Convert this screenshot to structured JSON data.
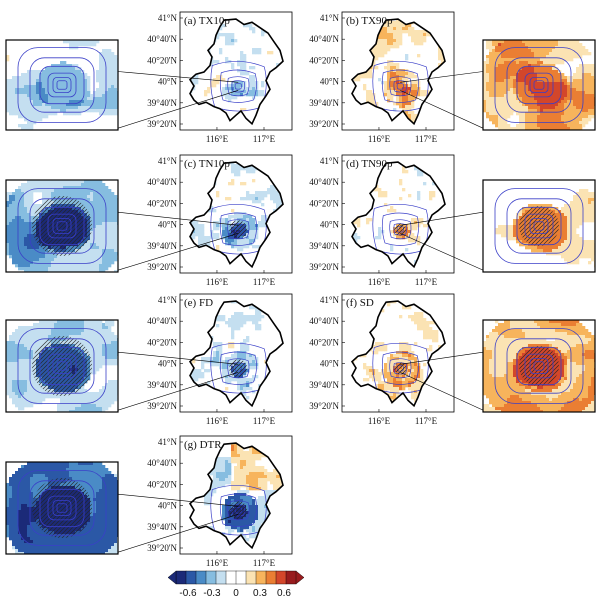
{
  "panels": [
    {
      "id": "a",
      "title": "(a) TX10p",
      "pattern": "cool",
      "core": -0.25,
      "halo": -0.1,
      "hatch": "none"
    },
    {
      "id": "b",
      "title": "(b) TX90p",
      "pattern": "warm",
      "core": 0.35,
      "halo": 0.2,
      "hatch": "none"
    },
    {
      "id": "c",
      "title": "(c) TN10p",
      "pattern": "cool",
      "core": -0.55,
      "halo": -0.25,
      "hatch": "wide"
    },
    {
      "id": "d",
      "title": "(d) TN90p",
      "pattern": "mixed",
      "core": 0.3,
      "halo": 0.05,
      "hatch": "core"
    },
    {
      "id": "e",
      "title": "(e) FD",
      "pattern": "cool",
      "core": -0.45,
      "halo": -0.15,
      "hatch": "wide"
    },
    {
      "id": "f",
      "title": "(f) SD",
      "pattern": "warm",
      "core": 0.45,
      "halo": 0.25,
      "hatch": "core"
    },
    {
      "id": "g",
      "title": "(g) DTR",
      "pattern": "dtr",
      "core": -0.65,
      "halo": -0.4,
      "hatch": "wide"
    }
  ],
  "lat_labels": [
    "41°N",
    "40°40'N",
    "40°20'N",
    "40°N",
    "39°40'N",
    "39°20'N"
  ],
  "lon_labels": [
    "116°E",
    "117°E"
  ],
  "colorbar": {
    "colors": [
      "#1b2a78",
      "#2b58a6",
      "#4a8bc6",
      "#86bde0",
      "#c4dff0",
      "#ffffff",
      "#ffffff",
      "#fbe3b3",
      "#f7b45c",
      "#ea7e33",
      "#d3462a",
      "#981b1d"
    ],
    "tick_labels": [
      "-0.6",
      "-0.3",
      "0",
      "0.3",
      "0.6"
    ],
    "tick_values": [
      -0.6,
      -0.3,
      0,
      0.3,
      0.6
    ],
    "range": [
      -0.75,
      0.75
    ]
  }
}
